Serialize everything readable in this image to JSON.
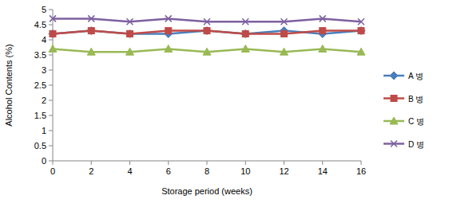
{
  "chart_data": {
    "type": "line",
    "x_label": "Storage period (weeks)",
    "y_label": "Alcohol Contents (%)",
    "x": [
      0,
      2,
      4,
      6,
      8,
      10,
      12,
      14,
      16
    ],
    "xlim": [
      0,
      16
    ],
    "xticks": [
      0,
      2,
      4,
      6,
      8,
      10,
      12,
      14,
      16
    ],
    "ylim": [
      0,
      5
    ],
    "yticks": [
      0,
      0.5,
      1,
      1.5,
      2,
      2.5,
      3,
      3.5,
      4,
      4.5,
      5
    ],
    "grid": false,
    "legend": "right",
    "series": [
      {
        "name": "A 병",
        "color": "#4a7ebb",
        "marker": "diamond",
        "values": [
          4.2,
          4.3,
          4.2,
          4.2,
          4.3,
          4.2,
          4.3,
          4.2,
          4.3
        ]
      },
      {
        "name": "B 병",
        "color": "#be4b48",
        "marker": "square",
        "values": [
          4.2,
          4.3,
          4.2,
          4.3,
          4.3,
          4.2,
          4.2,
          4.3,
          4.3
        ]
      },
      {
        "name": "C 병",
        "color": "#98b954",
        "marker": "triangle",
        "values": [
          3.7,
          3.6,
          3.6,
          3.7,
          3.6,
          3.7,
          3.6,
          3.7,
          3.6
        ]
      },
      {
        "name": "D 병",
        "color": "#7d60a0",
        "marker": "x",
        "values": [
          4.7,
          4.7,
          4.6,
          4.7,
          4.6,
          4.6,
          4.6,
          4.7,
          4.6
        ]
      }
    ]
  }
}
